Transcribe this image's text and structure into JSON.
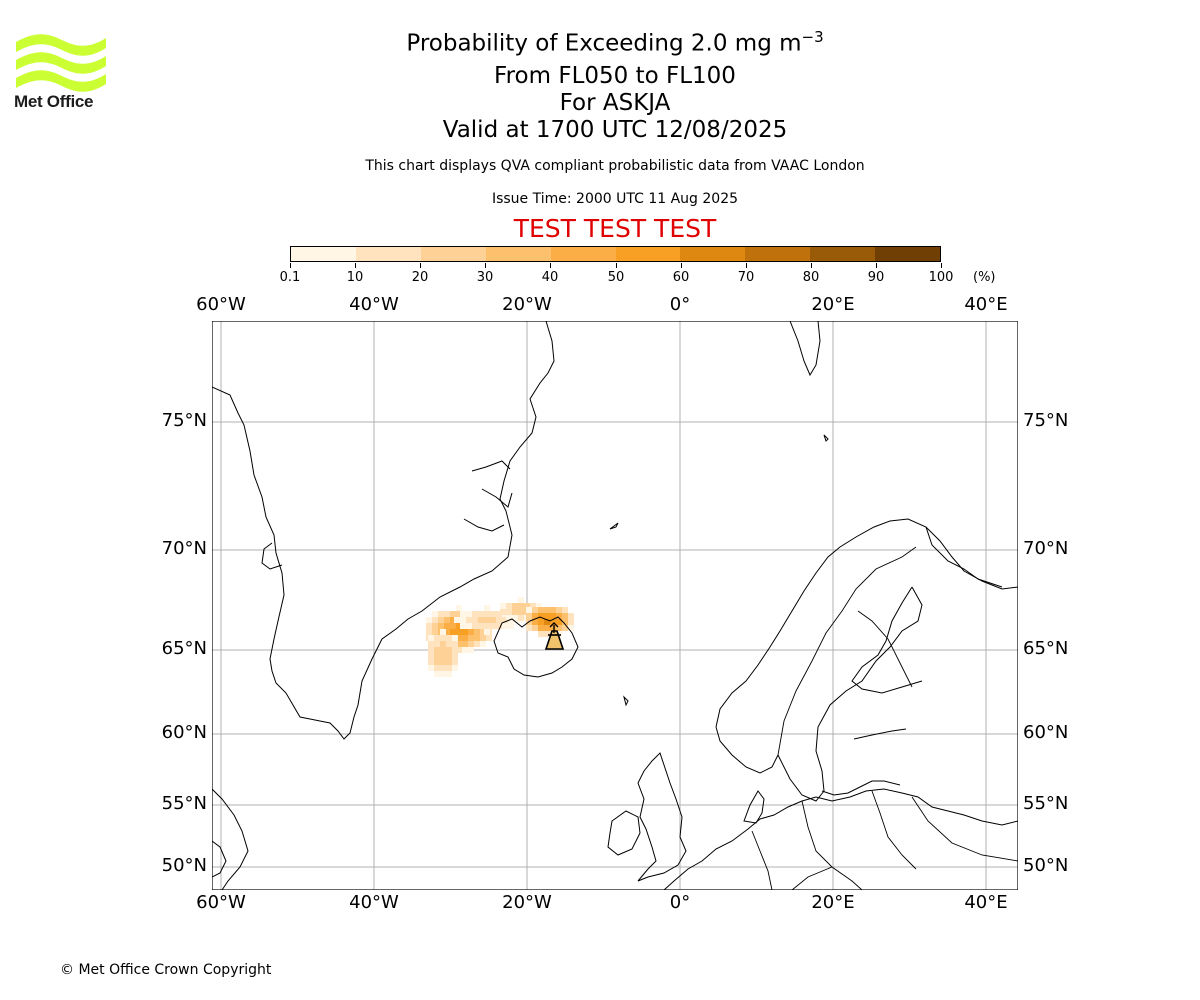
{
  "branding": {
    "logo_text": "Met Office",
    "logo_color": "#ccff33"
  },
  "header": {
    "title_main": "Probability of Exceeding 2.0 mg m",
    "title_exponent": "−3",
    "flight_levels": "From FL050 to FL100",
    "volcano": "For ASKJA",
    "valid_time": "Valid at 1700 UTC 12/08/2025",
    "description": "This chart displays QVA compliant probabilistic data from VAAC London",
    "issue_time": "Issue Time: 2000 UTC 11 Aug 2025",
    "test_banner": "TEST TEST TEST",
    "test_banner_color": "#e00000"
  },
  "colorbar": {
    "ticks": [
      "0.1",
      "10",
      "20",
      "30",
      "40",
      "50",
      "60",
      "70",
      "80",
      "90",
      "100"
    ],
    "unit": "(%)",
    "colors": [
      "#fff6e6",
      "#ffe3bf",
      "#fed196",
      "#fdc06d",
      "#fbad46",
      "#f7a024",
      "#df8811",
      "#bf720c",
      "#9a5b08",
      "#6f3f04"
    ]
  },
  "map": {
    "lon_labels": [
      "60°W",
      "40°W",
      "20°W",
      "0°",
      "20°E",
      "40°E"
    ],
    "lat_labels": [
      "75°N",
      "70°N",
      "65°N",
      "60°N",
      "55°N",
      "50°N"
    ],
    "gridline_color": "#b0b0b0",
    "volcano_marker": "volcano-icon",
    "ash_plume": {
      "west_cluster_max_percent": 50,
      "iceland_cluster_max_percent": 60
    }
  },
  "footer": {
    "copyright": "© Met Office Crown Copyright"
  }
}
